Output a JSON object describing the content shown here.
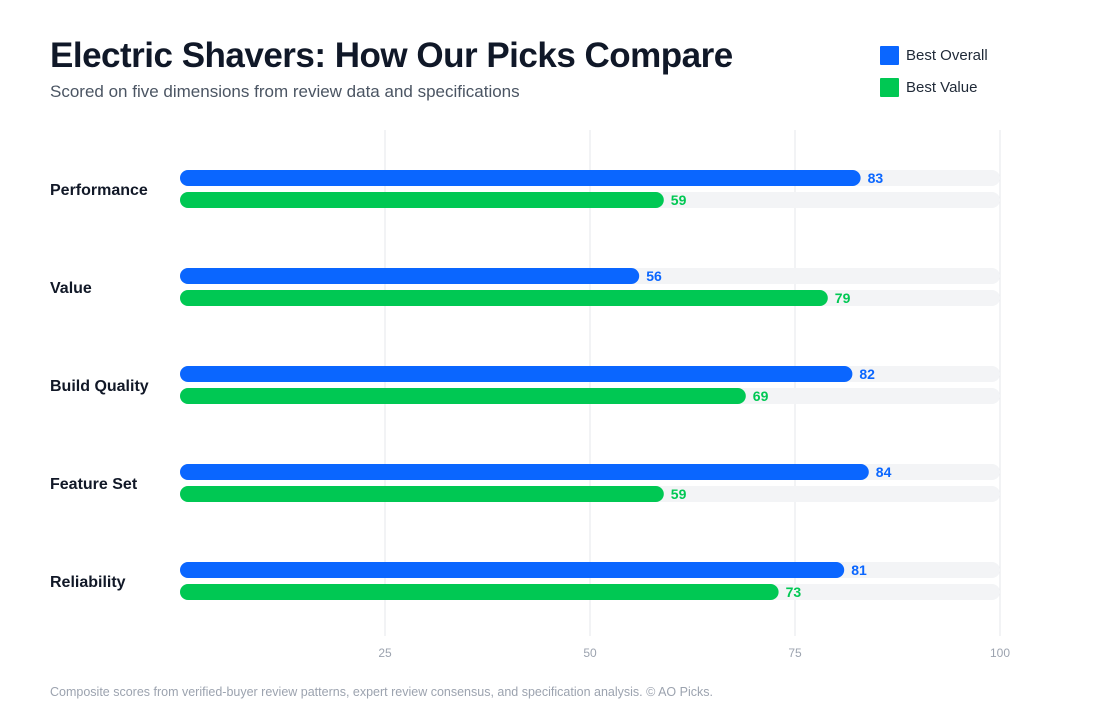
{
  "header": {
    "title": "Electric Shavers: How Our Picks Compare",
    "subtitle": "Scored on five dimensions from review data and specifications"
  },
  "legend": [
    {
      "label": "Best Overall",
      "color": "#0a66ff"
    },
    {
      "label": "Best Value",
      "color": "#00c853"
    }
  ],
  "footer": {
    "note": "Composite scores from verified-buyer review patterns, expert review consensus, and specification analysis. © AO Picks."
  },
  "chart_data": {
    "type": "bar",
    "orientation": "horizontal",
    "title": "Electric Shavers: How Our Picks Compare",
    "subtitle": "Scored on five dimensions from review data and specifications",
    "categories": [
      "Performance",
      "Value",
      "Build Quality",
      "Feature Set",
      "Reliability"
    ],
    "series": [
      {
        "name": "Best Overall",
        "color": "#0a66ff",
        "values": [
          83,
          56,
          82,
          84,
          81
        ]
      },
      {
        "name": "Best Value",
        "color": "#00c853",
        "values": [
          59,
          79,
          69,
          59,
          73
        ]
      }
    ],
    "xlim": [
      0,
      100
    ],
    "xticks": [
      25,
      50,
      75,
      100
    ],
    "grid": true,
    "legend_position": "top-right",
    "track_color": "#f3f4f6",
    "grid_color": "#e5e7eb"
  }
}
